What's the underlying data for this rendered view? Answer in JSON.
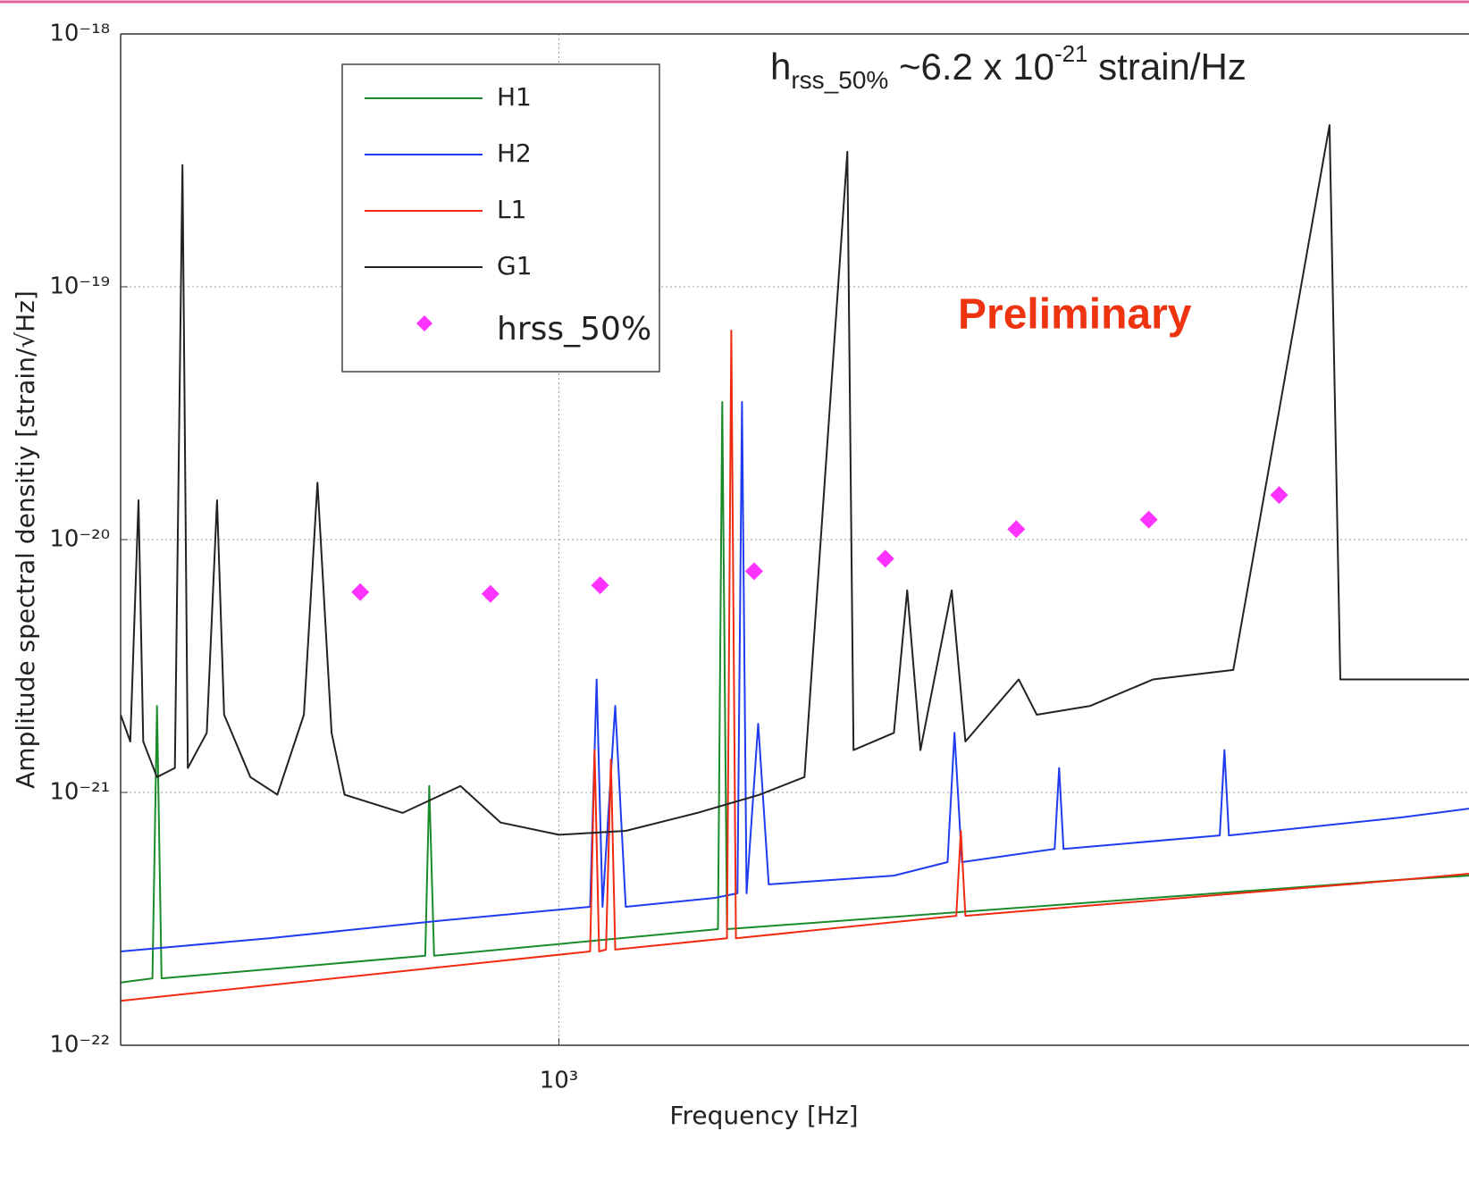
{
  "chart_data": {
    "type": "line",
    "title": "Preliminary",
    "annotation": [
      "h",
      "rss_50%",
      " ~6.2 x 10",
      "-21",
      " strain/Hz"
    ],
    "xlabel": "Frequency [Hz]",
    "ylabel": "Amplitude spectral densitiy [strain/√Hz]",
    "log": true,
    "grid": true,
    "legend": "upper left",
    "xlim": [
      441,
      5475
    ],
    "ylim": [
      1e-22,
      1e-18
    ],
    "xticks": [
      {
        "value": 1000,
        "label": "10³"
      }
    ],
    "yticks": [
      {
        "value": 1e-22,
        "label": "10⁻²²"
      },
      {
        "value": 1e-21,
        "label": "10⁻²¹"
      },
      {
        "value": 1e-20,
        "label": "10⁻²⁰"
      },
      {
        "value": 1e-19,
        "label": "10⁻¹⁹"
      },
      {
        "value": 1e-18,
        "label": "10⁻¹⁸"
      }
    ],
    "series": [
      {
        "name": "H1",
        "color": "#1a8a2a",
        "type": "line",
        "x": [
          441,
          468,
          472,
          476,
          779,
          785,
          792,
          1346,
          1357,
          1369,
          4800,
          5475
        ],
        "values": [
          1.77e-22,
          1.84e-22,
          2.2e-21,
          1.84e-22,
          2.26e-22,
          1.06e-21,
          2.26e-22,
          2.88e-22,
          3.5e-20,
          2.88e-22,
          4.51e-22,
          4.69e-22
        ]
      },
      {
        "name": "H2",
        "color": "#1f3cf0",
        "type": "line",
        "x": [
          441,
          582,
          812,
          1060,
          1073,
          1085,
          1111,
          1133,
          1339,
          1396,
          1408,
          1420,
          1451,
          1480,
          1870,
          2067,
          2094,
          2123,
          2525,
          2546,
          2567,
          3437,
          3467,
          3496,
          4822,
          5475
        ],
        "values": [
          2.35e-22,
          2.65e-22,
          3.13e-22,
          3.53e-22,
          2.8e-21,
          3.53e-22,
          2.2e-21,
          3.53e-22,
          3.83e-22,
          3.99e-22,
          3.5e-20,
          3.99e-22,
          1.87e-21,
          4.33e-22,
          4.69e-22,
          5.3e-22,
          1.72e-21,
          5.3e-22,
          5.98e-22,
          1.25e-21,
          5.98e-22,
          6.76e-22,
          1.47e-21,
          6.76e-22,
          7.96e-22,
          8.63e-22
        ]
      },
      {
        "name": "L1",
        "color": "#f02a10",
        "type": "line",
        "x": [
          441,
          1060,
          1069,
          1078,
          1092,
          1102,
          1111,
          1369,
          1380,
          1392,
          2101,
          2119,
          2137,
          4822,
          5475
        ],
        "values": [
          1.5e-22,
          2.35e-22,
          1.47e-21,
          2.35e-22,
          2.39e-22,
          1.35e-21,
          2.39e-22,
          2.65e-22,
          6.71e-20,
          2.65e-22,
          3.25e-22,
          7.05e-22,
          3.25e-22,
          4.51e-22,
          4.77e-22
        ]
      },
      {
        "name": "G1",
        "color": "#222222",
        "type": "line",
        "x": [
          441,
          449,
          456,
          460,
          472,
          488,
          495,
          500,
          518,
          528,
          535,
          562,
          591,
          621,
          637,
          654,
          670,
          747,
          832,
          897,
          1000,
          1133,
          1295,
          1455,
          1582,
          1714,
          1734,
          1870,
          1917,
          1965,
          2083,
          2137,
          2361,
          2442,
          2699,
          3034,
          3525,
          4219,
          4305,
          4822,
          5475
        ],
        "values": [
          2.03e-21,
          1.59e-21,
          1.43e-20,
          1.59e-21,
          1.15e-21,
          1.25e-21,
          3.03e-19,
          1.25e-21,
          1.72e-21,
          1.43e-20,
          2.03e-21,
          1.15e-21,
          9.8e-22,
          2.03e-21,
          1.68e-20,
          1.72e-21,
          9.8e-22,
          8.3e-22,
          1.06e-21,
          7.6e-22,
          6.8e-22,
          7.05e-22,
          8.3e-22,
          9.8e-22,
          1.15e-21,
          3.42e-19,
          1.47e-21,
          1.72e-21,
          6.3e-21,
          1.47e-21,
          6.3e-21,
          1.59e-21,
          2.8e-21,
          2.03e-21,
          2.2e-21,
          2.8e-21,
          3.05e-21,
          4.36e-19,
          2.8e-21,
          2.8e-21,
          2.8e-21
        ]
      },
      {
        "name": "hrss_50%",
        "color": "#ff33ff",
        "type": "scatter",
        "x": [
          690,
          880,
          1080,
          1440,
          1840,
          2350,
          3010,
          3840
        ],
        "values": [
          6.2e-21,
          6.1e-21,
          6.6e-21,
          7.5e-21,
          8.4e-21,
          1.1e-20,
          1.2e-20,
          1.5e-20
        ]
      }
    ]
  }
}
